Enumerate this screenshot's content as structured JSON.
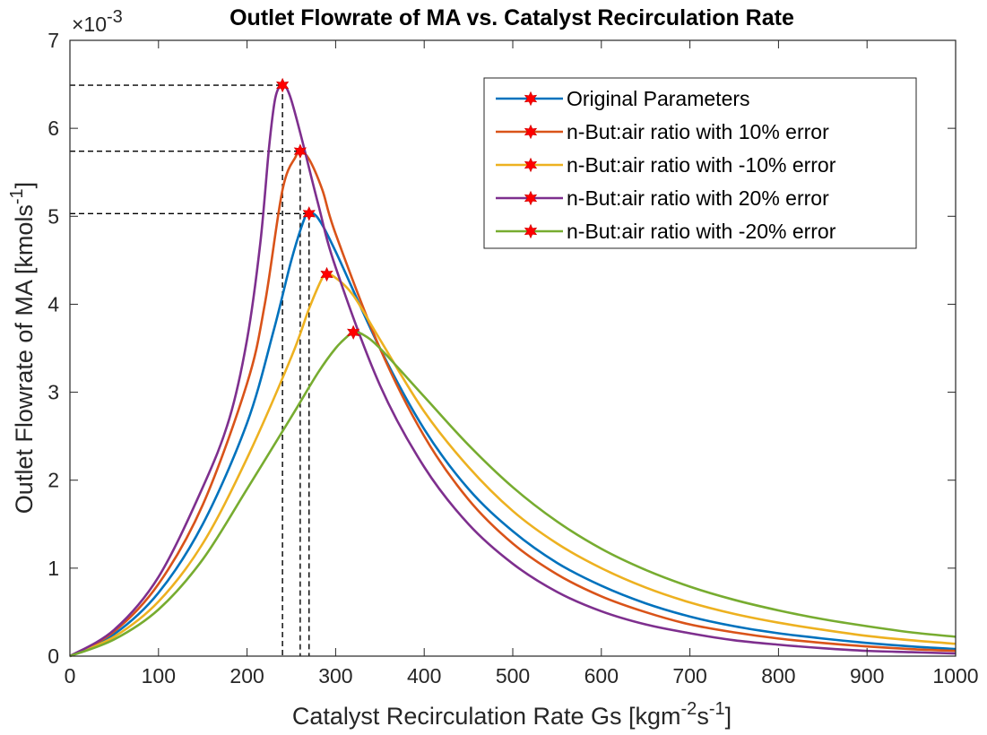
{
  "chart_data": {
    "type": "line",
    "title": "Outlet Flowrate of MA vs. Catalyst Recirculation Rate",
    "xlabel": {
      "base": "Catalyst Recirculation Rate Gs [kgm",
      "sup1": "-2",
      "mid": "s",
      "sup2": "-1",
      "end": "]"
    },
    "ylabel": {
      "base": "Outlet Flowrate of MA [kmols",
      "sup": "-1",
      "end": "]"
    },
    "y_multiplier": {
      "prefix": "×10",
      "sup": "-3"
    },
    "xlim": [
      0,
      1000
    ],
    "ylim": [
      0,
      7
    ],
    "xticks": [
      0,
      100,
      200,
      300,
      400,
      500,
      600,
      700,
      800,
      900,
      1000
    ],
    "yticks": [
      0,
      1,
      2,
      3,
      4,
      5,
      6,
      7
    ],
    "grid": false,
    "legend_position": "top-right",
    "marker": "red-star",
    "series": [
      {
        "name": "Original Parameters",
        "color": "#0072BD",
        "peak": [
          270,
          5.03
        ],
        "points": [
          [
            0,
            0
          ],
          [
            50,
            0.25
          ],
          [
            100,
            0.72
          ],
          [
            150,
            1.5
          ],
          [
            200,
            2.65
          ],
          [
            230,
            3.7
          ],
          [
            250,
            4.5
          ],
          [
            265,
            4.98
          ],
          [
            270,
            5.03
          ],
          [
            280,
            4.98
          ],
          [
            300,
            4.6
          ],
          [
            350,
            3.5
          ],
          [
            400,
            2.58
          ],
          [
            450,
            1.9
          ],
          [
            500,
            1.42
          ],
          [
            550,
            1.06
          ],
          [
            600,
            0.8
          ],
          [
            650,
            0.6
          ],
          [
            700,
            0.45
          ],
          [
            750,
            0.34
          ],
          [
            800,
            0.26
          ],
          [
            850,
            0.2
          ],
          [
            900,
            0.15
          ],
          [
            950,
            0.11
          ],
          [
            1000,
            0.08
          ]
        ]
      },
      {
        "name": "n-But:air ratio with 10% error",
        "color": "#D95319",
        "peak": [
          260,
          5.74
        ],
        "points": [
          [
            0,
            0
          ],
          [
            50,
            0.28
          ],
          [
            100,
            0.82
          ],
          [
            150,
            1.72
          ],
          [
            200,
            3.1
          ],
          [
            220,
            4.0
          ],
          [
            240,
            5.3
          ],
          [
            255,
            5.68
          ],
          [
            260,
            5.74
          ],
          [
            270,
            5.65
          ],
          [
            285,
            5.3
          ],
          [
            300,
            4.8
          ],
          [
            350,
            3.5
          ],
          [
            400,
            2.5
          ],
          [
            450,
            1.78
          ],
          [
            500,
            1.28
          ],
          [
            550,
            0.93
          ],
          [
            600,
            0.68
          ],
          [
            650,
            0.5
          ],
          [
            700,
            0.36
          ],
          [
            750,
            0.27
          ],
          [
            800,
            0.2
          ],
          [
            850,
            0.15
          ],
          [
            900,
            0.11
          ],
          [
            950,
            0.08
          ],
          [
            1000,
            0.06
          ]
        ]
      },
      {
        "name": "n-But:air ratio with -10% error",
        "color": "#EDB120",
        "peak": [
          290,
          4.34
        ],
        "points": [
          [
            0,
            0
          ],
          [
            50,
            0.22
          ],
          [
            100,
            0.62
          ],
          [
            150,
            1.28
          ],
          [
            200,
            2.25
          ],
          [
            250,
            3.4
          ],
          [
            270,
            3.95
          ],
          [
            285,
            4.3
          ],
          [
            290,
            4.34
          ],
          [
            300,
            4.3
          ],
          [
            320,
            4.1
          ],
          [
            350,
            3.6
          ],
          [
            400,
            2.78
          ],
          [
            450,
            2.15
          ],
          [
            500,
            1.65
          ],
          [
            550,
            1.28
          ],
          [
            600,
            1.0
          ],
          [
            650,
            0.78
          ],
          [
            700,
            0.61
          ],
          [
            750,
            0.48
          ],
          [
            800,
            0.38
          ],
          [
            850,
            0.3
          ],
          [
            900,
            0.23
          ],
          [
            950,
            0.18
          ],
          [
            1000,
            0.14
          ]
        ]
      },
      {
        "name": "n-But:air ratio with 20% error",
        "color": "#7E2F8E",
        "peak": [
          240,
          6.49
        ],
        "points": [
          [
            0,
            0
          ],
          [
            50,
            0.3
          ],
          [
            100,
            0.9
          ],
          [
            150,
            1.92
          ],
          [
            180,
            2.7
          ],
          [
            200,
            3.6
          ],
          [
            215,
            4.7
          ],
          [
            225,
            5.8
          ],
          [
            232,
            6.35
          ],
          [
            240,
            6.49
          ],
          [
            248,
            6.38
          ],
          [
            260,
            5.95
          ],
          [
            280,
            5.15
          ],
          [
            300,
            4.42
          ],
          [
            350,
            3.08
          ],
          [
            400,
            2.15
          ],
          [
            450,
            1.5
          ],
          [
            500,
            1.05
          ],
          [
            550,
            0.73
          ],
          [
            600,
            0.51
          ],
          [
            650,
            0.36
          ],
          [
            700,
            0.26
          ],
          [
            750,
            0.18
          ],
          [
            800,
            0.13
          ],
          [
            850,
            0.09
          ],
          [
            900,
            0.06
          ],
          [
            950,
            0.045
          ],
          [
            1000,
            0.03
          ]
        ]
      },
      {
        "name": "n-But:air ratio with -20% error",
        "color": "#77AC30",
        "peak": [
          320,
          3.68
        ],
        "points": [
          [
            0,
            0
          ],
          [
            50,
            0.19
          ],
          [
            100,
            0.53
          ],
          [
            150,
            1.1
          ],
          [
            200,
            1.9
          ],
          [
            250,
            2.72
          ],
          [
            280,
            3.22
          ],
          [
            300,
            3.5
          ],
          [
            315,
            3.65
          ],
          [
            320,
            3.68
          ],
          [
            330,
            3.66
          ],
          [
            350,
            3.5
          ],
          [
            400,
            2.95
          ],
          [
            450,
            2.4
          ],
          [
            500,
            1.92
          ],
          [
            550,
            1.53
          ],
          [
            600,
            1.22
          ],
          [
            650,
            0.98
          ],
          [
            700,
            0.79
          ],
          [
            750,
            0.64
          ],
          [
            800,
            0.52
          ],
          [
            850,
            0.42
          ],
          [
            900,
            0.34
          ],
          [
            950,
            0.27
          ],
          [
            1000,
            0.22
          ]
        ]
      }
    ]
  }
}
